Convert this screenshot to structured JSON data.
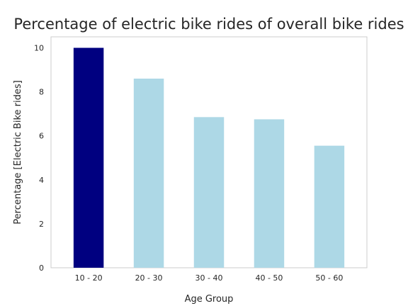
{
  "chart_data": {
    "type": "bar",
    "title": "Percentage of electric bike rides of overall bike rides",
    "xlabel": "Age Group",
    "ylabel": "Percentage [Electric Bike rides]",
    "categories": [
      "10 - 20",
      "20 - 30",
      "30 - 40",
      "40 - 50",
      "50 - 60"
    ],
    "values": [
      10.0,
      8.6,
      6.85,
      6.75,
      5.55
    ],
    "colors": [
      "#000080",
      "#add8e6",
      "#add8e6",
      "#add8e6",
      "#add8e6"
    ],
    "yticks": [
      0,
      2,
      4,
      6,
      8,
      10
    ],
    "ylim": [
      0,
      10.5
    ],
    "grid": false,
    "legend": "none"
  }
}
